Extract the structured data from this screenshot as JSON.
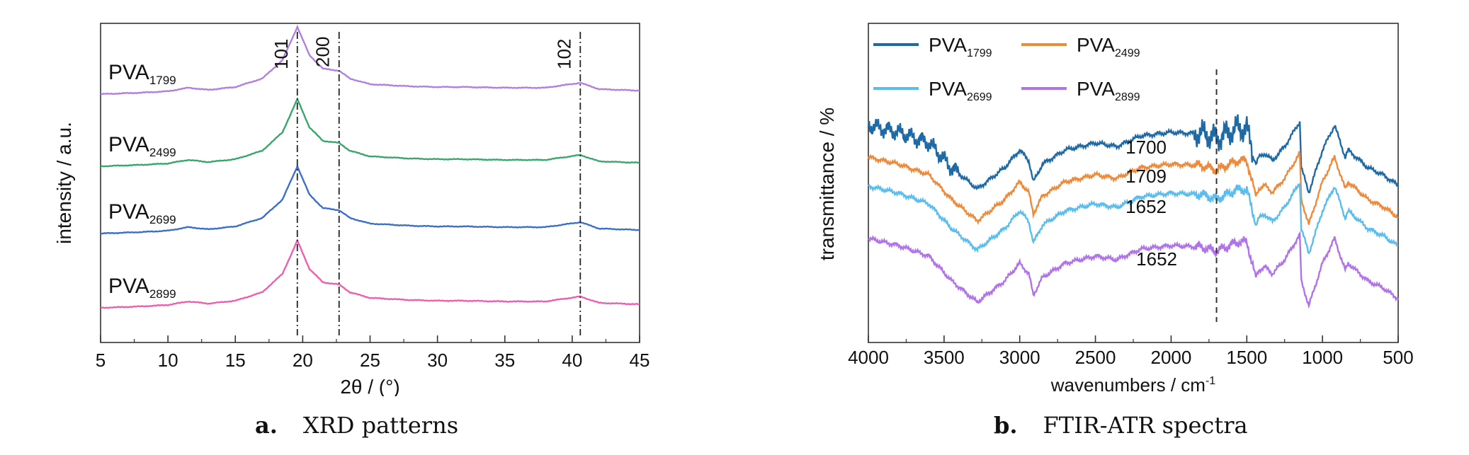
{
  "panels": {
    "a": {
      "caption_letter": "a.",
      "caption_text": "XRD patterns"
    },
    "b": {
      "caption_letter": "b.",
      "caption_text": "FTIR-ATR spectra"
    }
  },
  "chart_data": [
    {
      "id": "xrd",
      "type": "line",
      "xlabel": "2θ / (°)",
      "ylabel": "intensity / a.u.",
      "xlim": [
        5,
        45
      ],
      "xticks": [
        5,
        10,
        15,
        20,
        25,
        30,
        35,
        40,
        45
      ],
      "yticks_shown": false,
      "grid": false,
      "peak_lines": [
        {
          "x": 19.6,
          "label": "101"
        },
        {
          "x": 22.7,
          "label": "200"
        },
        {
          "x": 40.6,
          "label": "102"
        }
      ],
      "series": [
        {
          "name_base": "PVA",
          "name_sub": "1799",
          "color": "#b07fe0",
          "offset": 3
        },
        {
          "name_base": "PVA",
          "name_sub": "2499",
          "color": "#3aa66e",
          "offset": 2
        },
        {
          "name_base": "PVA",
          "name_sub": "2699",
          "color": "#3b6fc9",
          "offset": 1
        },
        {
          "name_base": "PVA",
          "name_sub": "2899",
          "color": "#ee5fb0",
          "offset": 0
        }
      ],
      "profile": {
        "x": [
          5,
          8,
          10,
          11.5,
          13,
          15,
          17,
          18.5,
          19.6,
          20.5,
          21.5,
          22.7,
          23.5,
          25,
          28,
          30,
          32,
          35,
          38,
          40.6,
          42,
          45
        ],
        "y": [
          0.0,
          0.02,
          0.04,
          0.09,
          0.06,
          0.1,
          0.22,
          0.48,
          0.95,
          0.55,
          0.36,
          0.33,
          0.22,
          0.14,
          0.11,
          0.1,
          0.1,
          0.09,
          0.09,
          0.16,
          0.07,
          0.05
        ]
      },
      "legend_placement": "inline-left"
    },
    {
      "id": "ftir",
      "type": "line",
      "xlabel": "wavenumbers / cm",
      "xlabel_sup": "-1",
      "ylabel": "transmittance / %",
      "xlim": [
        4000,
        500
      ],
      "x_reversed": true,
      "xticks": [
        4000,
        3500,
        3000,
        2500,
        2000,
        1500,
        1000,
        500
      ],
      "yticks_shown": false,
      "grid": false,
      "marker_line": {
        "x": 1700,
        "style": "dashed"
      },
      "annotations": [
        "1700",
        "1709",
        "1652",
        "1652"
      ],
      "series": [
        {
          "name_base": "PVA",
          "name_sub": "1799",
          "color": "#1f6aa5",
          "offset": 3
        },
        {
          "name_base": "PVA",
          "name_sub": "2499",
          "color": "#ee8a3c",
          "offset": 2
        },
        {
          "name_base": "PVA",
          "name_sub": "2699",
          "color": "#5bbcee",
          "offset": 1
        },
        {
          "name_base": "PVA",
          "name_sub": "2899",
          "color": "#b073e8",
          "offset": 0
        }
      ],
      "profile": {
        "x": [
          4000,
          3800,
          3600,
          3450,
          3280,
          3100,
          3000,
          2940,
          2910,
          2850,
          2700,
          2500,
          2360,
          2200,
          2000,
          1800,
          1700,
          1560,
          1500,
          1440,
          1420,
          1380,
          1330,
          1250,
          1150,
          1140,
          1090,
          1000,
          920,
          850,
          830,
          700,
          600,
          500
        ],
        "y": [
          0.0,
          -0.1,
          -0.25,
          -0.6,
          -0.9,
          -0.6,
          -0.35,
          -0.5,
          -0.8,
          -0.55,
          -0.35,
          -0.25,
          -0.3,
          -0.15,
          -0.1,
          -0.12,
          -0.18,
          -0.05,
          -0.05,
          -0.55,
          -0.45,
          -0.4,
          -0.5,
          -0.3,
          0.05,
          -0.6,
          -0.95,
          -0.35,
          0.0,
          -0.45,
          -0.35,
          -0.6,
          -0.7,
          -0.85
        ]
      },
      "legend_placement": "top-left",
      "legend_columns": 2
    }
  ]
}
